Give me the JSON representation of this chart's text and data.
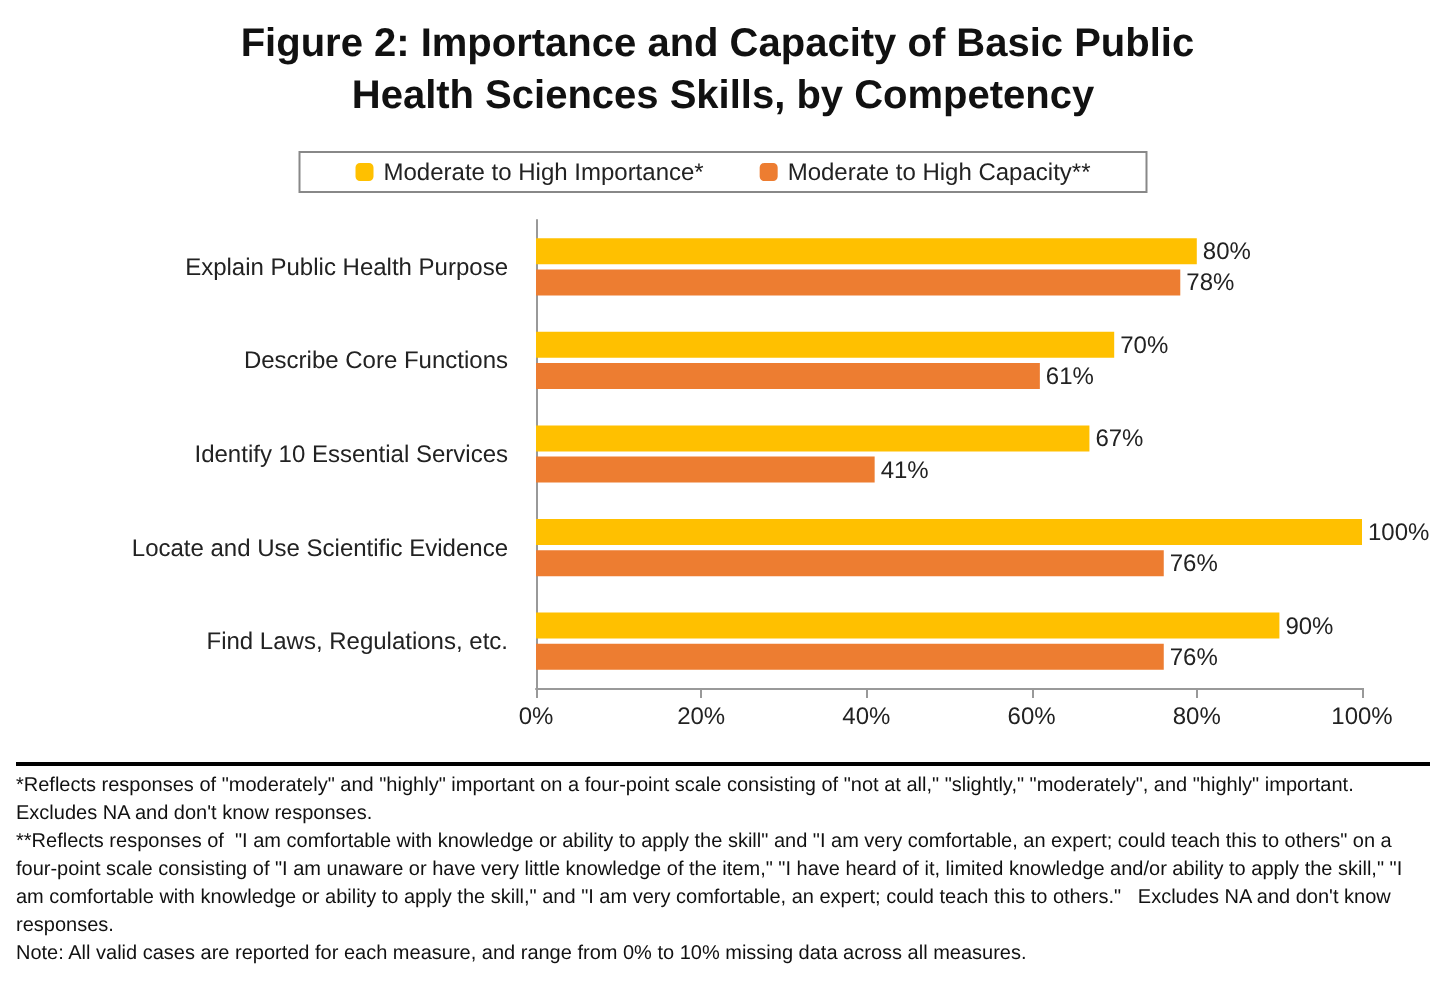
{
  "chart_data": {
    "type": "bar",
    "orientation": "horizontal",
    "title": "Figure 2: Importance and Capacity of Basic Public Health Sciences Skills, by Competency",
    "categories": [
      "Explain Public Health Purpose",
      "Describe Core Functions",
      "Identify 10 Essential Services",
      "Locate and Use Scientific Evidence",
      "Find Laws, Regulations, etc."
    ],
    "series": [
      {
        "name": "Moderate to High Importance*",
        "color": "#ffc000",
        "values": [
          80,
          70,
          67,
          100,
          90
        ],
        "value_labels": [
          "80%",
          "70%",
          "67%",
          "100%",
          "90%"
        ]
      },
      {
        "name": "Moderate to High Capacity**",
        "color": "#ed7d31",
        "values": [
          78,
          61,
          41,
          76,
          76
        ],
        "value_labels": [
          "78%",
          "61%",
          "41%",
          "76%",
          "76%"
        ]
      }
    ],
    "xlim": [
      0,
      100
    ],
    "xticks": [
      {
        "value": 0,
        "label": "0%"
      },
      {
        "value": 20,
        "label": "20%"
      },
      {
        "value": 40,
        "label": "40%"
      },
      {
        "value": 60,
        "label": "60%"
      },
      {
        "value": 80,
        "label": "80%"
      },
      {
        "value": 100,
        "label": "100%"
      }
    ],
    "grid": false,
    "legend": "top",
    "annotations": [
      "*Reflects responses of \"moderately\" and \"highly\" important on a four-point scale consisting of \"not at all,\" \"slightly,\" \"moderately\", and \"highly\" important. Excludes NA and don't know responses.",
      "**Reflects responses of  \"I am comfortable with knowledge or ability to apply the skill\" and \"I am very comfortable, an expert; could teach this to others\" on a four-point scale consisting of \"I am unaware or have very little knowledge of the item,\" \"I have heard of it, limited knowledge and/or ability to apply the skill,\" \"I am comfortable with knowledge or ability to apply the skill,\" and \"I am very comfortable, an expert; could teach this to others.\"   Excludes NA and don't know responses.",
      "Note: All valid cases are reported for each measure, and range from 0% to 10% missing data across all measures."
    ]
  }
}
